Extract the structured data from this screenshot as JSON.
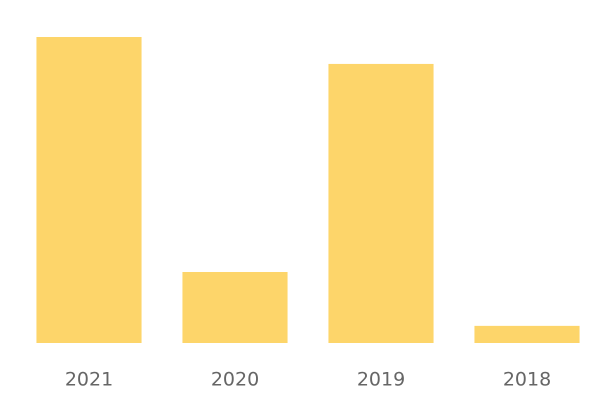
{
  "chart_data": {
    "type": "bar",
    "categories": [
      "2021",
      "2020",
      "2019",
      "2018"
    ],
    "values": [
      100,
      23.2,
      91.2,
      5.6
    ],
    "color": "#fdd56a",
    "ylim": [
      0,
      100
    ]
  }
}
